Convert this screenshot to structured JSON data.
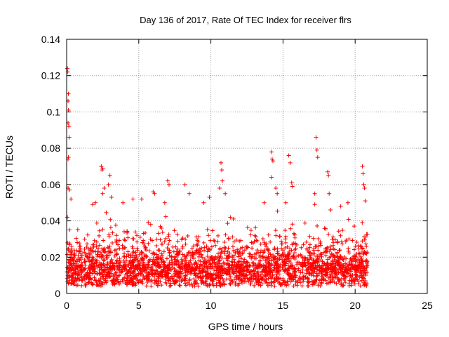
{
  "chart_data": {
    "type": "scatter",
    "title": "Day 136 of 2017, Rate Of TEC Index for receiver flrs",
    "xlabel": "GPS time / hours",
    "ylabel": "ROTI / TECUs",
    "xlim": [
      0,
      25
    ],
    "ylim": [
      0,
      0.14
    ],
    "x_ticks": [
      0,
      5,
      10,
      15,
      20,
      25
    ],
    "x_tick_labels": [
      "0",
      "5",
      "10",
      "15",
      "20",
      "25"
    ],
    "y_ticks": [
      0,
      0.02,
      0.04,
      0.06,
      0.08,
      0.1,
      0.12,
      0.14
    ],
    "y_tick_labels": [
      "0",
      "0.02",
      "0.04",
      "0.06",
      "0.08",
      "0.1",
      "0.12",
      "0.14"
    ],
    "grid": true,
    "marker": "+",
    "color": "#ff0000",
    "time_span_hours": [
      0,
      20.85
    ],
    "series": [
      {
        "points": [
          [
            0.05,
            0.124
          ],
          [
            0.08,
            0.122
          ],
          [
            0.12,
            0.11
          ],
          [
            0.1,
            0.106
          ],
          [
            0.13,
            0.101
          ],
          [
            0.1,
            0.094
          ],
          [
            0.15,
            0.092
          ],
          [
            0.18,
            0.086
          ],
          [
            0.12,
            0.075
          ],
          [
            0.1,
            0.074
          ],
          [
            0.1,
            0.058
          ],
          [
            0.2,
            0.057
          ],
          [
            0.3,
            0.052
          ],
          [
            0.05,
            0.042
          ],
          [
            0.2,
            0.035
          ],
          [
            2.4,
            0.07
          ],
          [
            2.5,
            0.069
          ],
          [
            2.45,
            0.068
          ],
          [
            2.6,
            0.058
          ],
          [
            2.5,
            0.055
          ],
          [
            3.0,
            0.065
          ],
          [
            2.9,
            0.06
          ],
          [
            3.1,
            0.053
          ],
          [
            2.0,
            0.05
          ],
          [
            1.8,
            0.049
          ],
          [
            3.9,
            0.05
          ],
          [
            4.6,
            0.052
          ],
          [
            5.2,
            0.052
          ],
          [
            6.0,
            0.056
          ],
          [
            6.1,
            0.055
          ],
          [
            7.0,
            0.062
          ],
          [
            7.1,
            0.06
          ],
          [
            6.8,
            0.05
          ],
          [
            8.2,
            0.06
          ],
          [
            8.5,
            0.055
          ],
          [
            9.5,
            0.05
          ],
          [
            9.9,
            0.053
          ],
          [
            10.7,
            0.072
          ],
          [
            10.75,
            0.068
          ],
          [
            10.8,
            0.062
          ],
          [
            10.6,
            0.058
          ],
          [
            11.0,
            0.055
          ],
          [
            13.7,
            0.05
          ],
          [
            14.2,
            0.078
          ],
          [
            14.25,
            0.074
          ],
          [
            14.3,
            0.073
          ],
          [
            14.2,
            0.064
          ],
          [
            14.5,
            0.058
          ],
          [
            14.6,
            0.055
          ],
          [
            15.4,
            0.076
          ],
          [
            15.5,
            0.072
          ],
          [
            15.6,
            0.061
          ],
          [
            15.65,
            0.059
          ],
          [
            15.2,
            0.05
          ],
          [
            17.3,
            0.086
          ],
          [
            17.35,
            0.079
          ],
          [
            17.4,
            0.075
          ],
          [
            17.2,
            0.055
          ],
          [
            18.1,
            0.067
          ],
          [
            18.15,
            0.065
          ],
          [
            18.2,
            0.055
          ],
          [
            18.3,
            0.046
          ],
          [
            19.0,
            0.048
          ],
          [
            19.5,
            0.05
          ],
          [
            20.5,
            0.07
          ],
          [
            20.55,
            0.066
          ],
          [
            20.6,
            0.06
          ],
          [
            20.65,
            0.058
          ],
          [
            20.7,
            0.051
          ]
        ]
      }
    ]
  }
}
